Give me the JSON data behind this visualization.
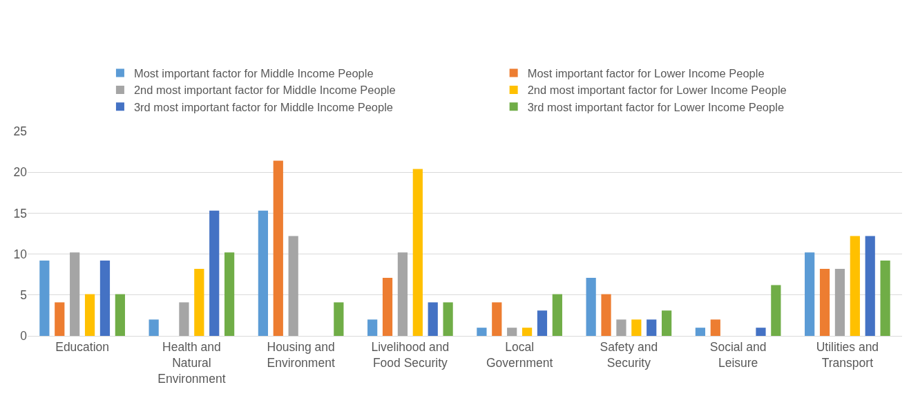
{
  "chart_data": {
    "type": "bar",
    "categories": [
      "Education",
      "Health and Natural Environment",
      "Housing and Environment",
      "Livelihood and Food Security",
      "Local Government",
      "Safety and Security",
      "Social and Leisure",
      "Utilities and Transport"
    ],
    "series": [
      {
        "name": "Most important factor for Middle Income People",
        "color": "#5b9bd5",
        "values": [
          9.2,
          2,
          15.3,
          2,
          1,
          7.1,
          1,
          10.2
        ]
      },
      {
        "name": "Most important factor for Lower Income People",
        "color": "#ed7d31",
        "values": [
          4.1,
          0,
          21.4,
          7.1,
          4.1,
          5.1,
          2,
          8.2
        ]
      },
      {
        "name": "2nd most important factor for Middle Income People",
        "color": "#a5a5a5",
        "values": [
          10.2,
          4.1,
          12.2,
          10.2,
          1,
          2,
          0,
          8.2
        ]
      },
      {
        "name": "2nd most important factor for Lower Income People",
        "color": "#ffc000",
        "values": [
          5.1,
          8.2,
          0,
          20.4,
          1,
          2,
          0,
          12.2
        ]
      },
      {
        "name": "3rd most important factor for Middle Income People",
        "color": "#4472c4",
        "values": [
          9.2,
          15.3,
          0,
          4.1,
          3.1,
          2,
          1,
          12.2
        ]
      },
      {
        "name": "3rd most important factor for Lower Income People",
        "color": "#70ad47",
        "values": [
          5.1,
          10.2,
          4.1,
          4.1,
          5.1,
          3.1,
          6.2,
          9.2
        ]
      }
    ],
    "ylim": [
      0,
      25
    ],
    "yticks": [
      0,
      5,
      10,
      15,
      20,
      25
    ],
    "grid": "y",
    "legend": "top"
  }
}
